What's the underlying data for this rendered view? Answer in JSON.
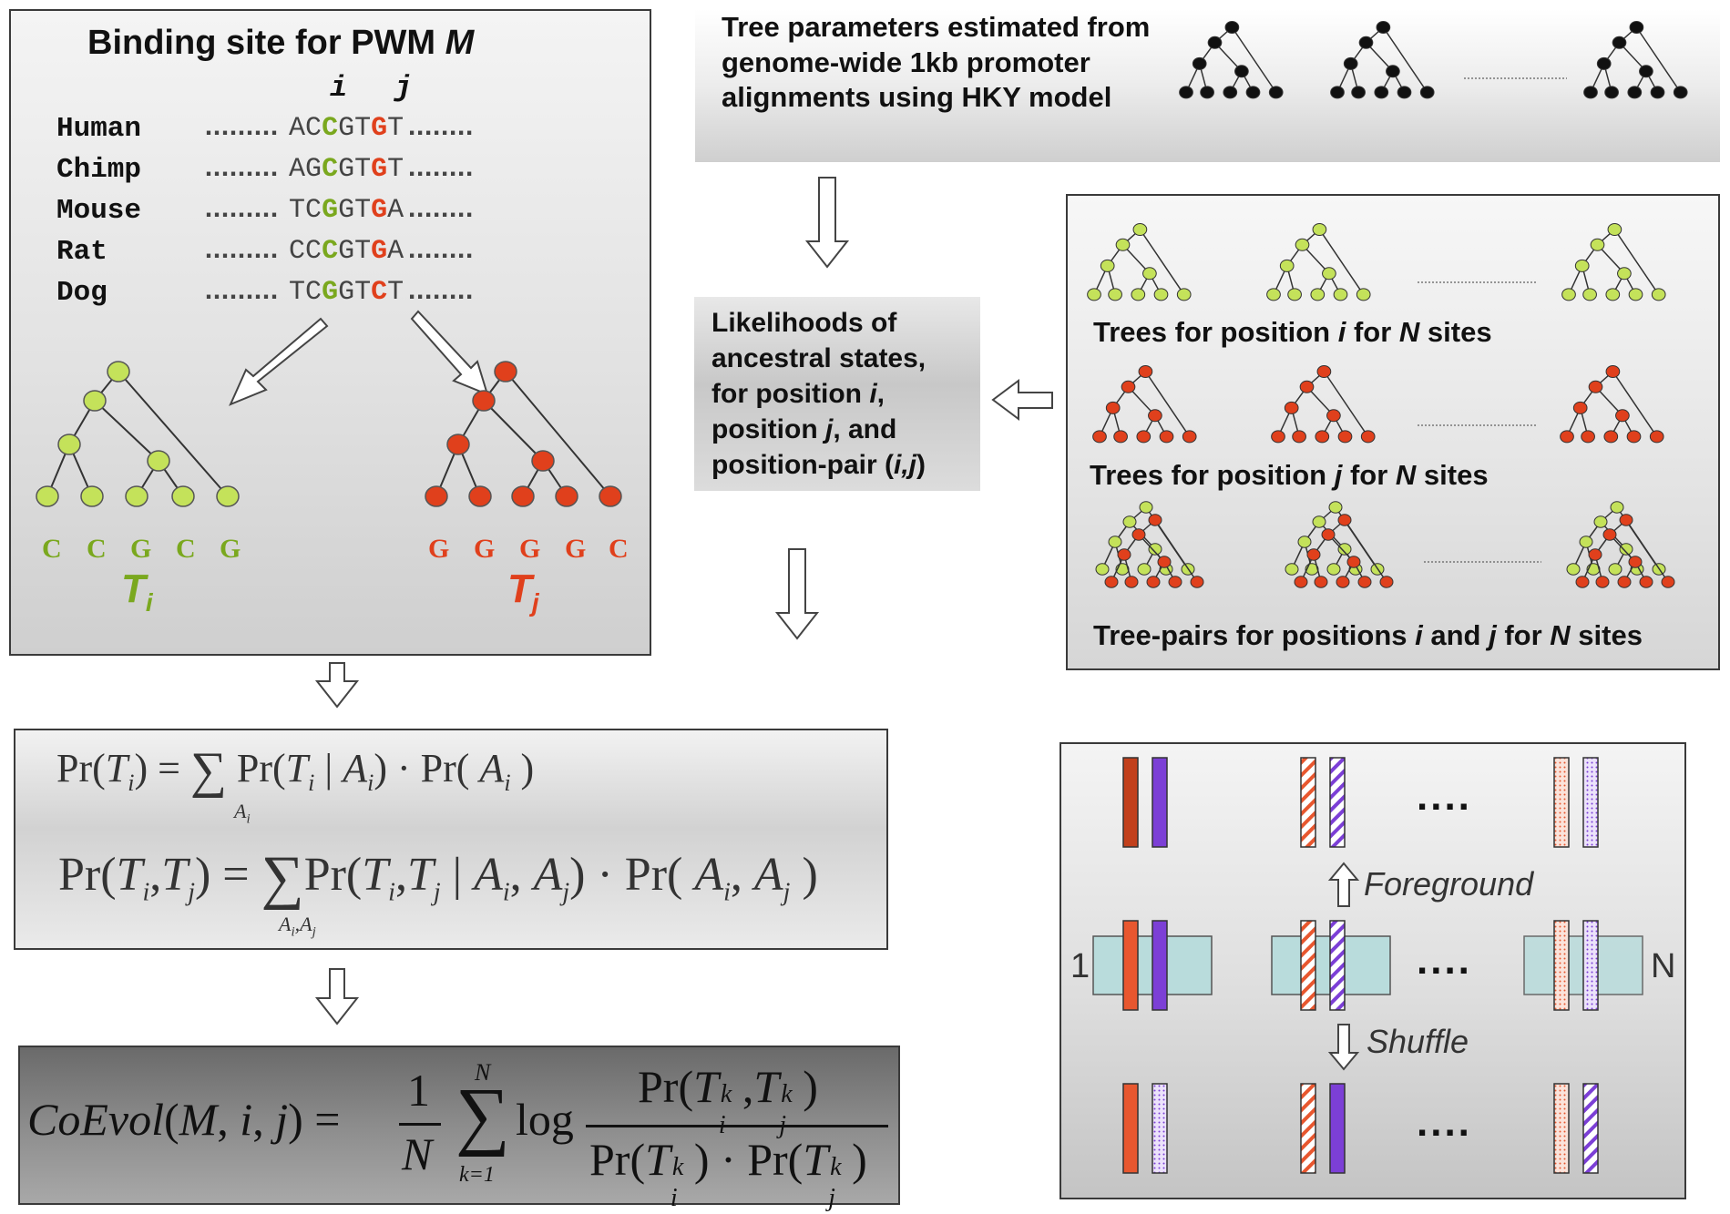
{
  "binding_panel": {
    "title": "Binding site for PWM ",
    "title_italic": "M",
    "pos_i": "i",
    "pos_j": "j",
    "species": [
      {
        "name": "Human",
        "dots_left": ".........",
        "seq": [
          "A",
          "C",
          "C",
          "G",
          "T",
          "G",
          "T"
        ],
        "dots_right": "........"
      },
      {
        "name": "Chimp",
        "dots_left": ".........",
        "seq": [
          "A",
          "G",
          "C",
          "G",
          "T",
          "G",
          "T"
        ],
        "dots_right": "........"
      },
      {
        "name": "Mouse",
        "dots_left": ".........",
        "seq": [
          "T",
          "C",
          "G",
          "G",
          "T",
          "G",
          "A"
        ],
        "dots_right": "........"
      },
      {
        "name": "Rat",
        "dots_left": ".........",
        "seq": [
          "C",
          "C",
          "C",
          "G",
          "T",
          "G",
          "A"
        ],
        "dots_right": "........"
      },
      {
        "name": "Dog",
        "dots_left": ".........",
        "seq": [
          "T",
          "C",
          "G",
          "G",
          "T",
          "C",
          "T"
        ],
        "dots_right": "........"
      }
    ],
    "leaves_i": [
      "C",
      "C",
      "G",
      "C",
      "G"
    ],
    "leaves_j": [
      "G",
      "G",
      "G",
      "G",
      "C"
    ],
    "tree_i_label": "T",
    "tree_i_sub": "i",
    "tree_j_label": "T",
    "tree_j_sub": "j"
  },
  "params_panel": {
    "line1": "Tree parameters estimated from",
    "line2": "genome-wide 1kb promoter",
    "line3": "alignments using HKY model"
  },
  "likelihood_panel": {
    "line1": "Likelihoods of",
    "line2": "ancestral states,",
    "line3_a": "for position ",
    "line3_b": "i",
    "line3_c": ",",
    "line4_a": "position ",
    "line4_b": "j",
    "line4_c": ", and",
    "line5_a": "position-pair (",
    "line5_b": "i,j",
    "line5_c": ")"
  },
  "trees_panel": {
    "row1": {
      "a": "Trees for position ",
      "b": "i",
      "c": " for ",
      "d": "N",
      "e": " sites"
    },
    "row2": {
      "a": "Trees for position ",
      "b": "j",
      "c": " for ",
      "d": "N",
      "e": " sites"
    },
    "row3": {
      "a": "Tree-pairs for positions ",
      "b": "i",
      "c": " and ",
      "d": "j",
      "e": " for ",
      "f": "N",
      "g": " sites"
    }
  },
  "formula_panel": {
    "eq1_lhs": "Pr(T",
    "eq1_lhs_sub": "i",
    "eq1_rhs": ") = ",
    "eq1_sum_sub": "A",
    "eq1_sum_sub_i": "i",
    "eq1_body": "Pr(T | A) · Pr( A )",
    "eq2_lhs": "Pr(T , T ) = ",
    "eq2_sum_sub": "A , A",
    "eq2_body": "Pr(T , T | A , A ) · Pr( A , A )",
    "sub_i": "i",
    "sub_j": "j"
  },
  "coevol_panel": {
    "lhs": "CoEvol(M, i, j) =",
    "one": "1",
    "N": "N",
    "sum_top": "N",
    "sum_bottom": "k=1",
    "log": "log",
    "numerator": "Pr(T , T )",
    "denominator": "Pr(T ) · Pr(T )",
    "sup_k": "k",
    "sub_i": "i",
    "sub_j": "j"
  },
  "shuffle_panel": {
    "foreground": "Foreground",
    "shuffle": "Shuffle",
    "ellipsis": "....",
    "label_1": "1",
    "label_N": "N"
  },
  "colors": {
    "green": "#7aa81e",
    "green_node": "#c4e25a",
    "red": "#e0401c",
    "red_node": "#e0401c",
    "orange_bar": "#e8572f",
    "purple_bar": "#7c3fd6",
    "box_teal": "#b9dcdc"
  }
}
